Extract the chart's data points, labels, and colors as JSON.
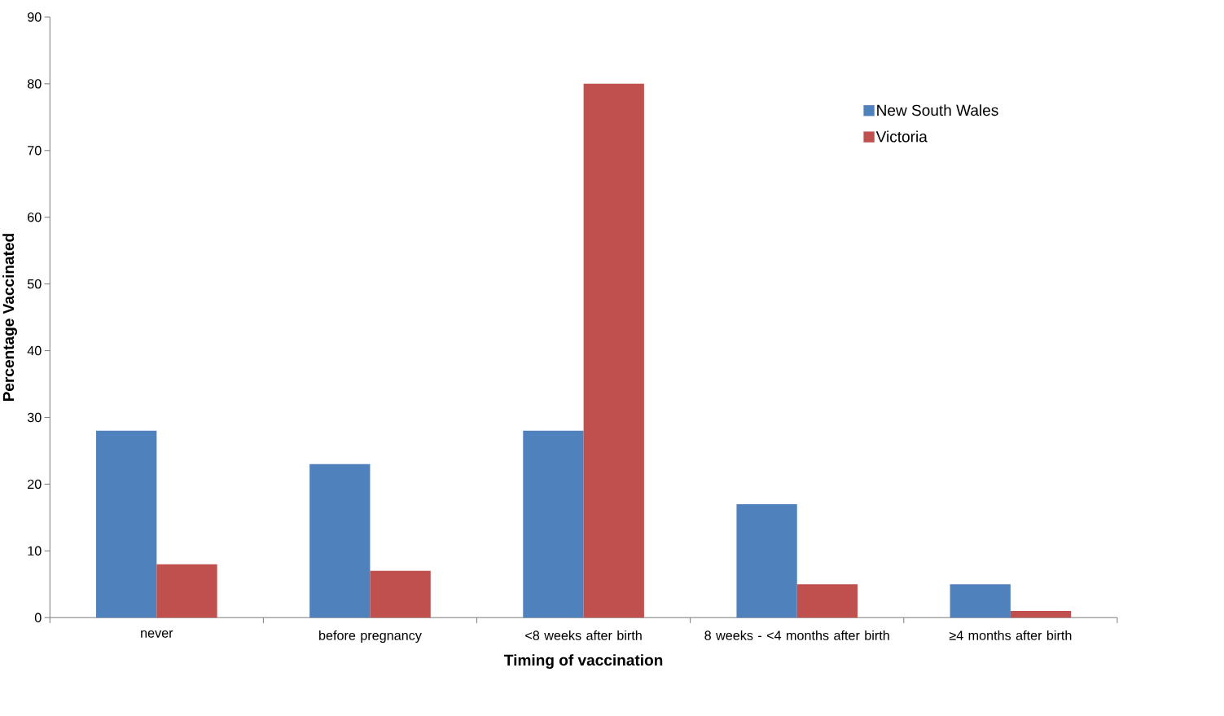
{
  "chart_data": {
    "type": "bar",
    "xlabel": "Timing of vaccination",
    "ylabel": "Percentage Vaccinated",
    "categories": [
      "never",
      "before pregnancy",
      "<8 weeks after birth",
      "8 weeks - <4 months after birth",
      "≥4 months after birth"
    ],
    "series": [
      {
        "name": "New South Wales",
        "color": "#4f81bd",
        "values": [
          28,
          23,
          28,
          17,
          5
        ]
      },
      {
        "name": "Victoria",
        "color": "#c0504d",
        "values": [
          8,
          7,
          80,
          5,
          1
        ]
      }
    ],
    "ylim": [
      0,
      90
    ],
    "yticks": [
      0,
      10,
      20,
      30,
      40,
      50,
      60,
      70,
      80,
      90
    ],
    "legend": "top right"
  }
}
